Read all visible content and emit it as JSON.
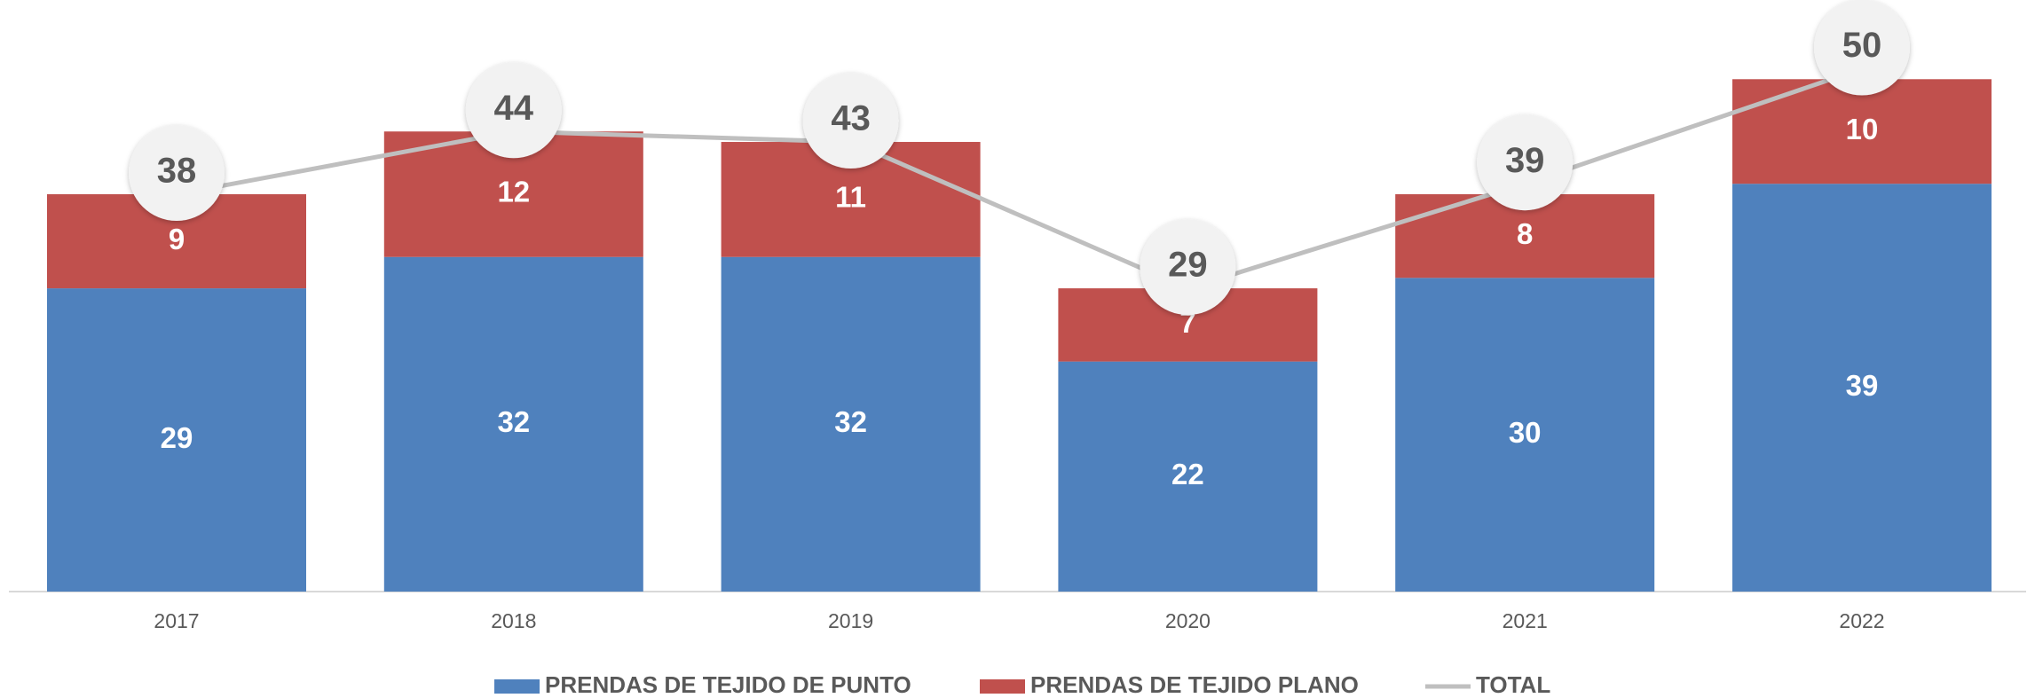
{
  "chart_data": {
    "type": "bar",
    "stacked": true,
    "categories": [
      "2017",
      "2018",
      "2019",
      "2020",
      "2021",
      "2022"
    ],
    "series": [
      {
        "name": "PRENDAS DE TEJIDO DE PUNTO",
        "color": "#4f81bd",
        "values": [
          29,
          32,
          32,
          22,
          30,
          39
        ]
      },
      {
        "name": "PRENDAS DE TEJIDO PLANO",
        "color": "#c0504d",
        "values": [
          9,
          12,
          11,
          7,
          8,
          10
        ]
      },
      {
        "name": "TOTAL",
        "type": "line",
        "color": "#bfbfbf",
        "values": [
          38,
          44,
          43,
          29,
          39,
          50
        ]
      }
    ],
    "legend": "bottom"
  }
}
